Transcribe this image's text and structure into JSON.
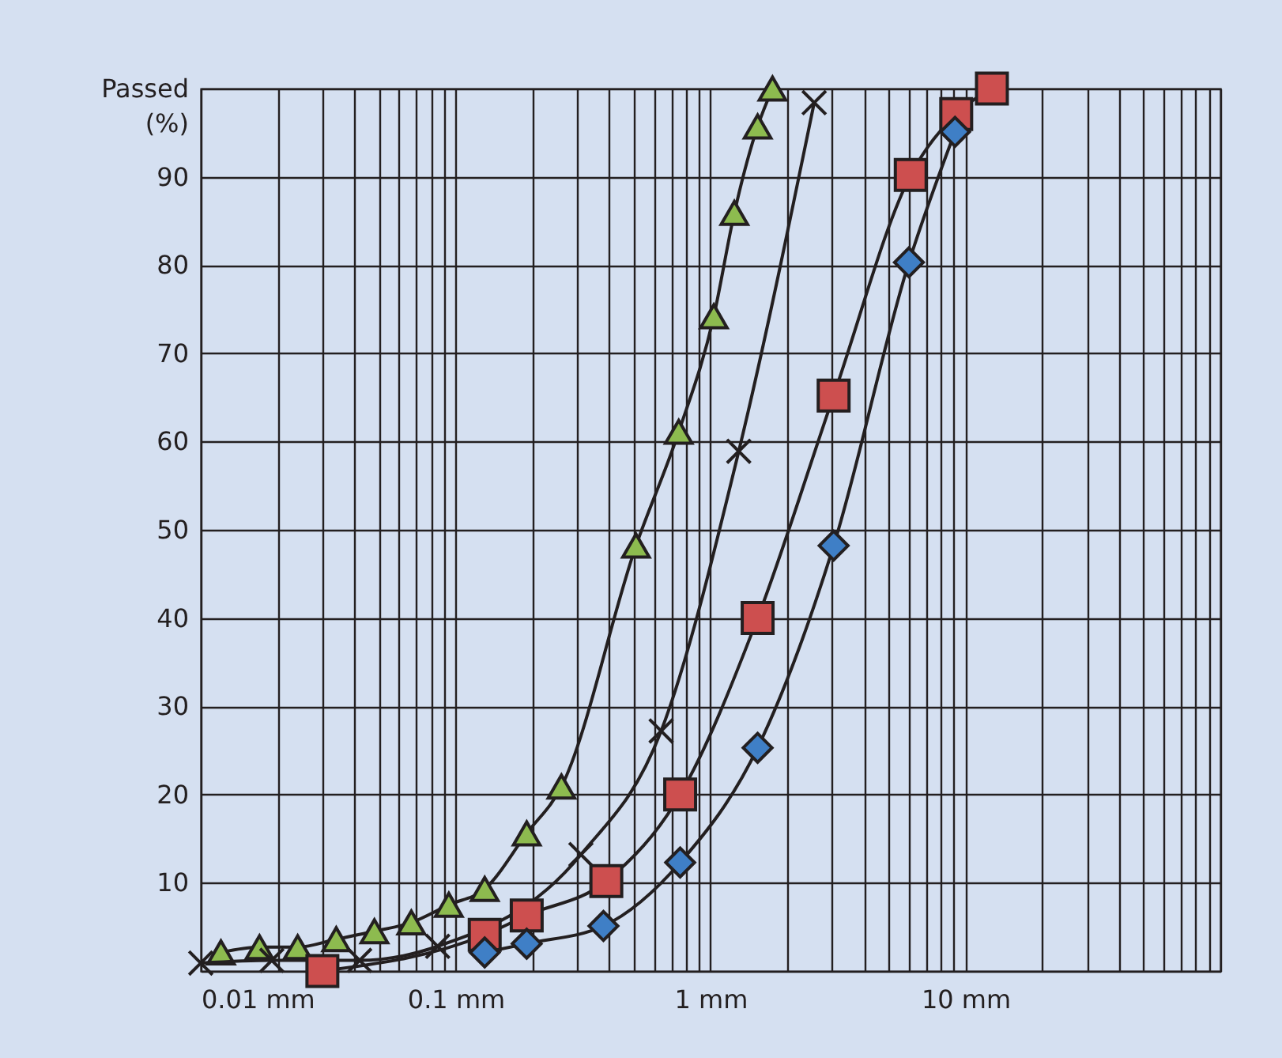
{
  "chart_data": {
    "type": "line",
    "ylabel": "Passed (%)",
    "log": "x",
    "grid": true,
    "xlim": [
      0.01,
      100
    ],
    "ylim": [
      0,
      100
    ],
    "xticks": [
      {
        "value": 0.01,
        "label": "0.01 mm"
      },
      {
        "value": 0.02,
        "label": null
      },
      {
        "value": 0.03,
        "label": null
      },
      {
        "value": 0.04,
        "label": null
      },
      {
        "value": 0.05,
        "label": null
      },
      {
        "value": 0.06,
        "label": null
      },
      {
        "value": 0.07,
        "label": null
      },
      {
        "value": 0.08,
        "label": null
      },
      {
        "value": 0.09,
        "label": null
      },
      {
        "value": 0.1,
        "label": "0.1 mm"
      },
      {
        "value": 0.2,
        "label": null
      },
      {
        "value": 0.3,
        "label": null
      },
      {
        "value": 0.4,
        "label": null
      },
      {
        "value": 0.5,
        "label": null
      },
      {
        "value": 0.6,
        "label": null
      },
      {
        "value": 0.7,
        "label": null
      },
      {
        "value": 0.8,
        "label": null
      },
      {
        "value": 0.9,
        "label": null
      },
      {
        "value": 1,
        "label": "1 mm"
      },
      {
        "value": 2,
        "label": null
      },
      {
        "value": 3,
        "label": null
      },
      {
        "value": 4,
        "label": null
      },
      {
        "value": 5,
        "label": null
      },
      {
        "value": 6,
        "label": null
      },
      {
        "value": 7,
        "label": null
      },
      {
        "value": 8,
        "label": null
      },
      {
        "value": 9,
        "label": null
      },
      {
        "value": 10,
        "label": "10 mm"
      },
      {
        "value": 20,
        "label": null
      },
      {
        "value": 30,
        "label": null
      },
      {
        "value": 40,
        "label": null
      },
      {
        "value": 50,
        "label": null
      },
      {
        "value": 60,
        "label": null
      },
      {
        "value": 70,
        "label": null
      },
      {
        "value": 80,
        "label": null
      },
      {
        "value": 90,
        "label": null
      },
      {
        "value": 100,
        "label": null
      }
    ],
    "yticks": [
      {
        "value": 0,
        "label": null
      },
      10,
      20,
      30,
      40,
      50,
      60,
      70,
      80,
      90,
      {
        "value": 100,
        "label": null
      }
    ],
    "series": [
      {
        "color": "#8dbb4f",
        "marker": "triangle",
        "x": [
          0.012,
          0.017,
          0.024,
          0.034,
          0.048,
          0.067,
          0.094,
          0.13,
          0.19,
          0.26,
          0.51,
          0.75,
          1.03,
          1.24,
          1.53,
          1.75
        ],
        "values": [
          2.1,
          2.7,
          2.7,
          3.6,
          4.5,
          5.5,
          7.5,
          9.3,
          15.6,
          20.9,
          48.2,
          61.1,
          74.2,
          85.9,
          95.7,
          100
        ]
      },
      {
        "color": "#231f20",
        "marker": "cross",
        "x": [
          0.01,
          0.019,
          0.042,
          0.085,
          0.31,
          0.64,
          1.29,
          2.55
        ],
        "values": [
          0.9,
          1.2,
          1.2,
          2.8,
          13.2,
          27.2,
          58.9,
          98.4
        ]
      },
      {
        "color": "#cd4f4f",
        "marker": "square",
        "x": [
          0.03,
          0.13,
          0.19,
          0.39,
          0.76,
          1.53,
          3.04,
          6.1,
          9.2,
          12.7
        ],
        "values": [
          0,
          4.1,
          6.3,
          10.2,
          20.0,
          40.0,
          65.2,
          90.2,
          97.1,
          100
        ]
      },
      {
        "color": "#3f7fc6",
        "marker": "diamond",
        "x": [
          0.13,
          0.19,
          0.38,
          0.76,
          1.53,
          3.04,
          6.0,
          9.1
        ],
        "values": [
          2.1,
          3.1,
          5.1,
          12.3,
          25.3,
          48.2,
          80.3,
          95.1
        ]
      }
    ]
  }
}
